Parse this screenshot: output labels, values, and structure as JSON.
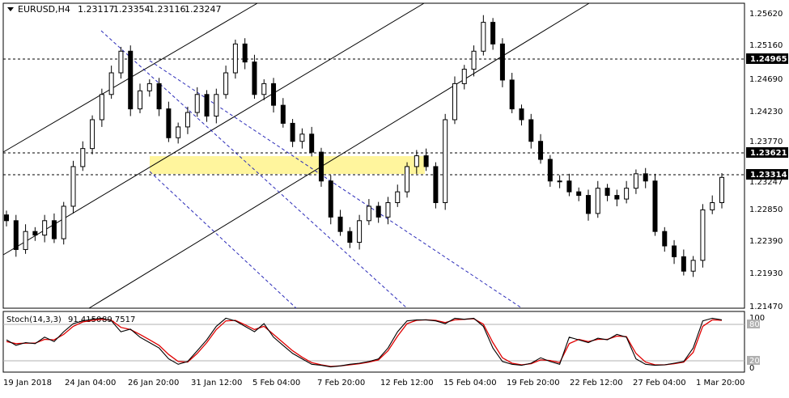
{
  "header": {
    "symbol_label": "EURUSD,H4",
    "open": "1.23117",
    "high": "1.23354",
    "low": "1.23116",
    "close": "1.23247"
  },
  "indicator": {
    "label": "Stoch(14,3,3)",
    "main_value": "91.4150",
    "signal_value": "89.7517",
    "levels": [
      "100",
      "80",
      "20",
      "0"
    ]
  },
  "price_axis": {
    "ticks": [
      "1.25620",
      "1.25160",
      "1.24690",
      "1.24230",
      "1.23770",
      "1.23247",
      "1.22850",
      "1.22390",
      "1.21930",
      "1.21470"
    ]
  },
  "price_tags": [
    {
      "label": "1.24965",
      "value": 1.24965
    },
    {
      "label": "1.23621",
      "value": 1.23621
    },
    {
      "label": "1.23314",
      "value": 1.23314
    }
  ],
  "time_axis": {
    "ticks": [
      "19 Jan 2018",
      "24 Jan 04:00",
      "26 Jan 20:00",
      "31 Jan 12:00",
      "5 Feb 04:00",
      "7 Feb 20:00",
      "12 Feb 12:00",
      "15 Feb 04:00",
      "19 Feb 20:00",
      "22 Feb 12:00",
      "27 Feb 04:00",
      "1 Mar 20:00"
    ]
  },
  "colors": {
    "background": "#ffffff",
    "candle": "#000000",
    "zone_fill": "#fff59d",
    "stoch_main": "#000000",
    "stoch_signal": "#e00000",
    "channel_dashed": "#2a2ab8"
  },
  "chart_data": {
    "type": "candlestick",
    "symbol": "EURUSD",
    "timeframe": "H4",
    "ylim": [
      1.2147,
      1.2562
    ],
    "horizontal_levels": [
      1.24965,
      1.23621,
      1.23314
    ],
    "support_zone": {
      "low": 1.2335,
      "high": 1.2356
    },
    "series": [
      {
        "name": "price_close_approx",
        "values": [
          1.2265,
          1.2225,
          1.225,
          1.2245,
          1.2265,
          1.224,
          1.2285,
          1.234,
          1.2365,
          1.2405,
          1.244,
          1.247,
          1.25,
          1.242,
          1.2445,
          1.2455,
          1.242,
          1.238,
          1.2395,
          1.2415,
          1.244,
          1.241,
          1.244,
          1.247,
          1.251,
          1.2485,
          1.244,
          1.2455,
          1.2425,
          1.24,
          1.2375,
          1.2385,
          1.236,
          1.232,
          1.227,
          1.225,
          1.2235,
          1.2265,
          1.2285,
          1.227,
          1.229,
          1.2305,
          1.234,
          1.2355,
          1.234,
          1.229,
          1.2405,
          1.2455,
          1.2475,
          1.25,
          1.254,
          1.251,
          1.246,
          1.242,
          1.2405,
          1.2375,
          1.235,
          1.232,
          1.232,
          1.2305,
          1.23,
          1.2275,
          1.231,
          1.23,
          1.2295,
          1.231,
          1.233,
          1.232,
          1.225,
          1.223,
          1.2215,
          1.2195,
          1.221,
          1.228,
          1.229,
          1.2325
        ]
      },
      {
        "name": "stoch_main_approx",
        "values": [
          55,
          45,
          50,
          48,
          60,
          52,
          70,
          85,
          90,
          93,
          95,
          90,
          70,
          75,
          60,
          50,
          40,
          20,
          10,
          15,
          35,
          55,
          80,
          95,
          90,
          80,
          70,
          85,
          60,
          45,
          30,
          20,
          10,
          8,
          5,
          7,
          10,
          12,
          15,
          20,
          40,
          70,
          90,
          92,
          92,
          90,
          85,
          95,
          93,
          95,
          80,
          40,
          15,
          10,
          8,
          12,
          22,
          15,
          10,
          60,
          55,
          50,
          58,
          55,
          65,
          60,
          20,
          10,
          8,
          9,
          12,
          15,
          40,
          90,
          95,
          92
        ]
      },
      {
        "name": "stoch_signal_approx",
        "values": [
          52,
          48,
          49,
          49,
          56,
          55,
          65,
          80,
          88,
          91,
          93,
          91,
          78,
          74,
          65,
          55,
          45,
          28,
          15,
          14,
          30,
          50,
          74,
          90,
          91,
          83,
          74,
          80,
          65,
          50,
          35,
          23,
          13,
          9,
          6,
          7,
          9,
          11,
          14,
          18,
          35,
          62,
          85,
          91,
          92,
          91,
          87,
          92,
          93,
          94,
          84,
          50,
          22,
          12,
          9,
          11,
          18,
          17,
          13,
          48,
          56,
          52,
          56,
          56,
          62,
          61,
          30,
          14,
          9,
          9,
          11,
          14,
          32,
          80,
          92,
          91
        ]
      }
    ]
  }
}
